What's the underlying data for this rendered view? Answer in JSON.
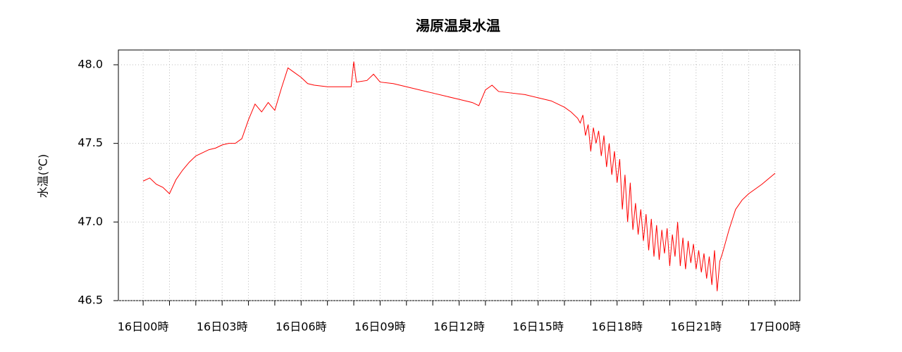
{
  "chart_data": {
    "type": "line",
    "title": "湯原温泉水温",
    "y_label": "水温(℃)",
    "color": "#ff0000",
    "grid": true,
    "x": [
      0,
      0.25,
      0.5,
      0.75,
      1,
      1.25,
      1.5,
      1.75,
      2,
      2.25,
      2.5,
      2.75,
      3,
      3.25,
      3.5,
      3.75,
      4,
      4.25,
      4.5,
      4.75,
      5,
      5.25,
      5.5,
      5.75,
      6,
      6.25,
      6.5,
      7,
      7.5,
      7.9,
      8.0,
      8.1,
      8.5,
      8.75,
      9,
      9.5,
      10,
      10.5,
      11,
      11.5,
      12,
      12.5,
      12.75,
      13,
      13.25,
      13.5,
      14,
      14.5,
      15,
      15.5,
      16,
      16.25,
      16.5,
      16.6,
      16.7,
      16.8,
      16.9,
      17.0,
      17.1,
      17.2,
      17.3,
      17.4,
      17.5,
      17.6,
      17.7,
      17.8,
      17.9,
      18.0,
      18.1,
      18.2,
      18.3,
      18.4,
      18.5,
      18.6,
      18.7,
      18.8,
      18.9,
      19.0,
      19.1,
      19.2,
      19.3,
      19.4,
      19.5,
      19.6,
      19.7,
      19.8,
      19.9,
      20.0,
      20.1,
      20.2,
      20.3,
      20.4,
      20.5,
      20.6,
      20.7,
      20.8,
      20.9,
      21.0,
      21.1,
      21.2,
      21.3,
      21.4,
      21.5,
      21.6,
      21.7,
      21.8,
      21.9,
      22.0,
      22.25,
      22.5,
      22.75,
      23,
      23.5,
      24
    ],
    "values": [
      47.26,
      47.28,
      47.24,
      47.22,
      47.18,
      47.27,
      47.33,
      47.38,
      47.42,
      47.44,
      47.46,
      47.47,
      47.49,
      47.5,
      47.5,
      47.53,
      47.65,
      47.75,
      47.7,
      47.76,
      47.71,
      47.85,
      47.98,
      47.95,
      47.92,
      47.88,
      47.87,
      47.86,
      47.86,
      47.86,
      48.02,
      47.89,
      47.9,
      47.94,
      47.89,
      47.88,
      47.86,
      47.84,
      47.82,
      47.8,
      47.78,
      47.76,
      47.74,
      47.84,
      47.87,
      47.83,
      47.82,
      47.81,
      47.79,
      47.77,
      47.73,
      47.7,
      47.66,
      47.63,
      47.68,
      47.55,
      47.62,
      47.45,
      47.6,
      47.5,
      47.58,
      47.42,
      47.55,
      47.35,
      47.5,
      47.3,
      47.45,
      47.25,
      47.4,
      47.08,
      47.3,
      47.0,
      47.25,
      46.95,
      47.12,
      46.92,
      47.08,
      46.88,
      47.05,
      46.82,
      47.02,
      46.78,
      46.98,
      46.76,
      46.95,
      46.8,
      46.96,
      46.72,
      46.92,
      46.78,
      47.0,
      46.72,
      46.9,
      46.7,
      46.88,
      46.74,
      46.86,
      46.7,
      46.82,
      46.68,
      46.8,
      46.64,
      46.78,
      46.6,
      46.82,
      46.56,
      46.75,
      46.8,
      46.95,
      47.08,
      47.14,
      47.18,
      47.24,
      47.31
    ],
    "xlim": [
      -0.94,
      24.94
    ],
    "xticks": [
      {
        "value": 0,
        "label": "16日00時"
      },
      {
        "value": 3,
        "label": "16日03時"
      },
      {
        "value": 6,
        "label": "16日06時"
      },
      {
        "value": 9,
        "label": "16日09時"
      },
      {
        "value": 12,
        "label": "16日12時"
      },
      {
        "value": 15,
        "label": "16日15時"
      },
      {
        "value": 18,
        "label": "16日18時"
      },
      {
        "value": 21,
        "label": "16日21時"
      },
      {
        "value": 24,
        "label": "17日00時"
      }
    ],
    "xminor_ticks": [
      1,
      2,
      4,
      5,
      7,
      8,
      10,
      11,
      13,
      14,
      16,
      17,
      19,
      20,
      22,
      23
    ],
    "ylim": [
      46.5,
      48.094
    ],
    "yticks": [
      46.5,
      {
        "value": 47,
        "label": "47.0"
      },
      47.5,
      {
        "value": 48,
        "label": "48.0"
      }
    ]
  }
}
